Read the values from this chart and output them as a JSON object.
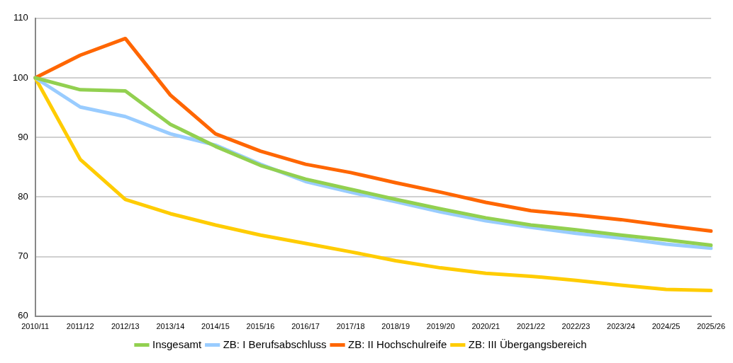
{
  "chart_data": {
    "type": "line",
    "categories": [
      "2010/11",
      "2011/12",
      "2012/13",
      "2013/14",
      "2014/15",
      "2015/16",
      "2016/17",
      "2017/18",
      "2018/19",
      "2019/20",
      "2020/21",
      "2021/22",
      "2022/23",
      "2023/24",
      "2024/25",
      "2025/26"
    ],
    "series": [
      {
        "name": "Insgesamt",
        "color": "#92d050",
        "values": [
          100,
          98.0,
          97.8,
          92.2,
          88.5,
          85.3,
          83.0,
          81.3,
          79.6,
          78.0,
          76.5,
          75.3,
          74.5,
          73.6,
          72.8,
          71.9
        ]
      },
      {
        "name": "ZB: I Berufsabschluss",
        "color": "#99ccff",
        "values": [
          100,
          95.1,
          93.5,
          90.6,
          88.7,
          85.5,
          82.6,
          80.8,
          79.2,
          77.5,
          76.0,
          74.9,
          73.9,
          73.1,
          72.1,
          71.4
        ]
      },
      {
        "name": "ZB: II Hochschulreife",
        "color": "#ff6600",
        "values": [
          100,
          103.8,
          106.6,
          97.1,
          90.6,
          87.7,
          85.5,
          84.1,
          82.4,
          80.8,
          79.1,
          77.7,
          77.0,
          76.2,
          75.2,
          74.3
        ]
      },
      {
        "name": "ZB: III Übergangsbereich",
        "color": "#ffcc00",
        "values": [
          100,
          86.3,
          79.6,
          77.2,
          75.3,
          73.6,
          72.2,
          70.8,
          69.3,
          68.1,
          67.2,
          66.7,
          66.0,
          65.2,
          64.5,
          64.3
        ]
      }
    ],
    "ylim": [
      60,
      110
    ],
    "yticks": [
      60,
      70,
      80,
      90,
      100,
      110
    ],
    "grid": "y",
    "legend": "bottom",
    "marker": "none",
    "line_style": "solid"
  }
}
